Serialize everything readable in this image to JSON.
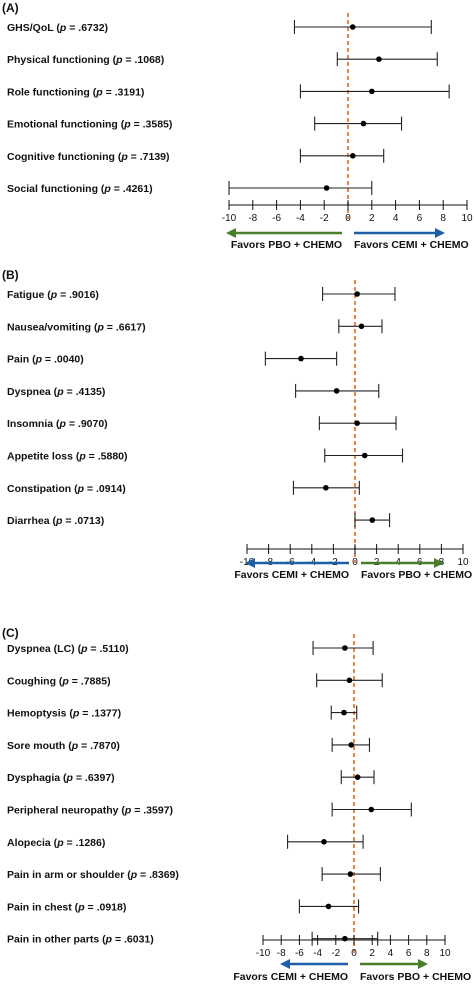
{
  "colors": {
    "ref_line": "#e2661d",
    "blue_arrow": "#1f5fa8",
    "green_arrow": "#4a7f2a",
    "ci": "#222222"
  },
  "chart_data": [
    {
      "type": "forest",
      "panel_label": "(A)",
      "xlim": [
        -10,
        10
      ],
      "xticks": [
        -10,
        -8,
        -6,
        -4,
        -2,
        0,
        2,
        4,
        6,
        8,
        10
      ],
      "tick_labels": [
        "-10",
        "-8",
        "-6",
        "-4",
        "-2",
        "0",
        "2",
        "4",
        "6",
        "8",
        "10"
      ],
      "left_caption": "Favors PBO + CHEMO",
      "right_caption": "Favors CEMI + CHEMO",
      "left_color": "#4a7f2a",
      "right_color": "#1f5fa8",
      "rows": [
        {
          "name": "GHS/QoL",
          "p": ".6732",
          "est": 0.4,
          "lo": -4.5,
          "hi": 7.0
        },
        {
          "name": "Physical functioning",
          "p": ".1068",
          "est": 2.6,
          "lo": -0.9,
          "hi": 7.5
        },
        {
          "name": "Role functioning",
          "p": ".3191",
          "est": 2.0,
          "lo": -4.0,
          "hi": 8.5
        },
        {
          "name": "Emotional functioning",
          "p": ".3585",
          "est": 1.3,
          "lo": -2.8,
          "hi": 4.5
        },
        {
          "name": "Cognitive functioning",
          "p": ".7139",
          "est": 0.4,
          "lo": -4.0,
          "hi": 3.0
        },
        {
          "name": "Social functioning",
          "p": ".4261",
          "est": -1.8,
          "lo": -10.0,
          "hi": 2.0
        }
      ]
    },
    {
      "type": "forest",
      "panel_label": "(B)",
      "xlim": [
        -10,
        10
      ],
      "xticks": [
        -10,
        -8,
        -6,
        -4,
        -2,
        0,
        2,
        4,
        6,
        8,
        10
      ],
      "tick_labels": [
        "-10",
        "-8",
        "-6",
        "-4",
        "-2",
        "0",
        "2",
        "4",
        "6",
        "8",
        "10"
      ],
      "left_caption": "Favors CEMI + CHEMO",
      "right_caption": "Favors PBO + CHEMO",
      "left_color": "#1f5fa8",
      "right_color": "#4a7f2a",
      "rows": [
        {
          "name": "Fatigue",
          "p": ".9016",
          "est": 0.2,
          "lo": -3.0,
          "hi": 3.7
        },
        {
          "name": "Nausea/vomiting",
          "p": ".6617",
          "est": 0.6,
          "lo": -1.5,
          "hi": 2.5
        },
        {
          "name": "Pain",
          "p": ".0040",
          "est": -5.0,
          "lo": -8.3,
          "hi": -1.7
        },
        {
          "name": "Dyspnea",
          "p": ".4135",
          "est": -1.7,
          "lo": -5.5,
          "hi": 2.2
        },
        {
          "name": "Insomnia",
          "p": ".9070",
          "est": 0.2,
          "lo": -3.3,
          "hi": 3.8
        },
        {
          "name": "Appetite loss",
          "p": ".5880",
          "est": 0.9,
          "lo": -2.8,
          "hi": 4.4
        },
        {
          "name": "Constipation",
          "p": ".0914",
          "est": -2.7,
          "lo": -5.7,
          "hi": 0.4
        },
        {
          "name": "Diarrhea",
          "p": ".0713",
          "est": 1.6,
          "lo": 0.0,
          "hi": 3.2
        }
      ]
    },
    {
      "type": "forest",
      "panel_label": "(C)",
      "xlim": [
        -10,
        10
      ],
      "xticks": [
        -10,
        -8,
        -6,
        -4,
        -2,
        0,
        2,
        4,
        6,
        8,
        10
      ],
      "tick_labels": [
        "-10",
        "-8",
        "-6",
        "-4",
        "-2",
        "0",
        "2",
        "4",
        "6",
        "8",
        "10"
      ],
      "left_caption": "Favors CEMI + CHEMO",
      "right_caption": "Favors PBO + CHEMO",
      "left_color": "#1f5fa8",
      "right_color": "#4a7f2a",
      "rows": [
        {
          "name": "Dyspnea (LC)",
          "p": ".5110",
          "est": -1.0,
          "lo": -4.5,
          "hi": 2.1
        },
        {
          "name": "Coughing",
          "p": ".7885",
          "est": -0.5,
          "lo": -4.1,
          "hi": 3.1
        },
        {
          "name": "Hemoptysis",
          "p": ".1377",
          "est": -1.1,
          "lo": -2.5,
          "hi": 0.3
        },
        {
          "name": "Sore mouth",
          "p": ".7870",
          "est": -0.3,
          "lo": -2.4,
          "hi": 1.7
        },
        {
          "name": "Dysphagia",
          "p": ".6397",
          "est": 0.4,
          "lo": -1.4,
          "hi": 2.2
        },
        {
          "name": "Peripheral neuropathy",
          "p": ".3597",
          "est": 1.9,
          "lo": -2.4,
          "hi": 6.3
        },
        {
          "name": "Alopecia",
          "p": ".1286",
          "est": -3.3,
          "lo": -7.3,
          "hi": 1.0
        },
        {
          "name": "Pain in arm or shoulder",
          "p": ".8369",
          "est": -0.4,
          "lo": -3.5,
          "hi": 2.9
        },
        {
          "name": "Pain in chest",
          "p": ".0918",
          "est": -2.8,
          "lo": -6.0,
          "hi": 0.5
        },
        {
          "name": "Pain in other parts",
          "p": ".6031",
          "est": -1.0,
          "lo": -4.6,
          "hi": 2.6
        }
      ]
    }
  ]
}
